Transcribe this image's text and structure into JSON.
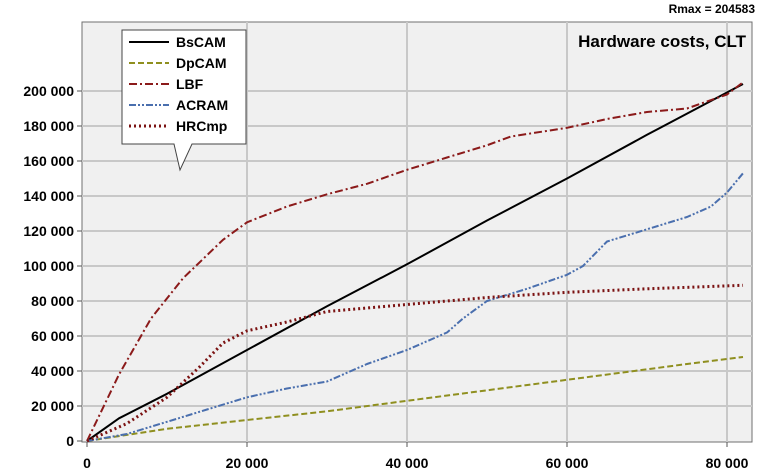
{
  "chart_data": {
    "type": "line",
    "title": "Hardware costs, CLT",
    "annotation": "Rmax = 204583",
    "xlabel": "",
    "ylabel": "",
    "xlim": [
      0,
      83000
    ],
    "ylim": [
      0,
      210000
    ],
    "x_ticks": [
      0,
      20000,
      40000,
      60000,
      80000
    ],
    "x_tick_labels": [
      "0",
      "20 000",
      "40 000",
      "60 000",
      "80 000"
    ],
    "y_ticks": [
      0,
      20000,
      40000,
      60000,
      80000,
      100000,
      120000,
      140000,
      160000,
      180000,
      200000
    ],
    "y_tick_labels": [
      "0",
      "20 000",
      "40 000",
      "60 000",
      "80 000",
      "100 000",
      "120 000",
      "140 000",
      "160 000",
      "180 000",
      "200 000"
    ],
    "grid": true,
    "legend_position": "top-left",
    "background": "#f0f0f0",
    "series": [
      {
        "name": "BsCAM",
        "color": "#000000",
        "dash": "solid",
        "x": [
          0,
          4000,
          10000,
          20000,
          30000,
          40000,
          50000,
          60000,
          70000,
          82000
        ],
        "y": [
          0,
          13000,
          27000,
          52000,
          77000,
          101000,
          126000,
          150000,
          175000,
          204000
        ]
      },
      {
        "name": "DpCAM",
        "color": "#8f8f1f",
        "dash": "dashed",
        "x": [
          0,
          10000,
          20000,
          30000,
          40000,
          50000,
          60000,
          70000,
          75000,
          82000
        ],
        "y": [
          0,
          7000,
          12000,
          17000,
          23000,
          29000,
          35000,
          41000,
          44000,
          48000
        ]
      },
      {
        "name": "LBF",
        "color": "#8b1a1a",
        "dash": "dash-dot",
        "x": [
          0,
          4000,
          8000,
          12000,
          17000,
          20000,
          25000,
          30000,
          35000,
          40000,
          45000,
          50000,
          53000,
          60000,
          65000,
          70000,
          75000,
          80000,
          82000
        ],
        "y": [
          0,
          38000,
          70000,
          93000,
          115000,
          125000,
          134000,
          141000,
          147000,
          155000,
          162000,
          169000,
          174000,
          179000,
          184000,
          188000,
          190000,
          198000,
          205000
        ]
      },
      {
        "name": "ACRAM",
        "color": "#4a6fae",
        "dash": "dash-dot-dot",
        "x": [
          0,
          5000,
          10000,
          15000,
          20000,
          25000,
          30000,
          35000,
          40000,
          45000,
          47000,
          50000,
          55000,
          60000,
          62000,
          65000,
          70000,
          75000,
          78000,
          80000,
          82000
        ],
        "y": [
          0,
          4000,
          11000,
          18000,
          25000,
          30000,
          34000,
          44000,
          52000,
          62000,
          70000,
          80000,
          87000,
          95000,
          100000,
          114000,
          121000,
          128000,
          134000,
          142000,
          153000
        ]
      },
      {
        "name": "HRCmp",
        "color": "#7b1212",
        "dash": "dotted",
        "x": [
          0,
          5000,
          10000,
          14000,
          17000,
          20000,
          25000,
          30000,
          40000,
          50000,
          60000,
          70000,
          82000
        ],
        "y": [
          0,
          10000,
          25000,
          42000,
          56000,
          63000,
          68000,
          74000,
          78000,
          82000,
          85000,
          87000,
          89000
        ]
      }
    ]
  }
}
